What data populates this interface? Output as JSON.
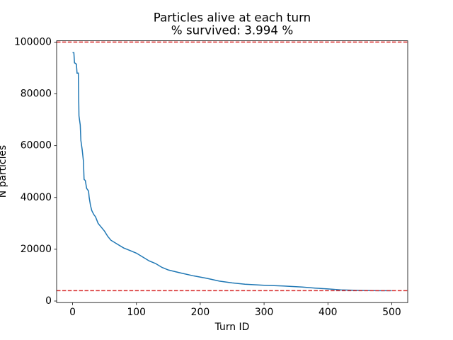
{
  "chart_data": {
    "type": "line",
    "title": "Particles alive at each turn",
    "subtitle": "% survived: 3.994 %",
    "x_label": "Turn ID",
    "y_label": "N particles",
    "x": [
      0,
      2,
      3,
      6,
      7,
      9,
      10,
      12,
      13,
      15,
      17,
      18,
      20,
      22,
      25,
      26,
      28,
      30,
      33,
      36,
      40,
      45,
      50,
      55,
      60,
      70,
      80,
      90,
      100,
      110,
      120,
      130,
      140,
      150,
      170,
      190,
      210,
      230,
      250,
      270,
      300,
      330,
      360,
      380,
      400,
      420,
      450,
      480,
      500
    ],
    "series": [
      {
        "name": "N particles",
        "color": "#1f77b4",
        "values": [
          95900,
          95900,
          92000,
          91500,
          88000,
          88000,
          71500,
          68000,
          62000,
          58500,
          54000,
          47000,
          46500,
          43500,
          42500,
          40000,
          37000,
          35000,
          33500,
          32500,
          30000,
          28500,
          27000,
          25000,
          23500,
          22000,
          20500,
          19500,
          18500,
          17000,
          15500,
          14500,
          13000,
          12000,
          10800,
          9700,
          8800,
          7700,
          7000,
          6500,
          6100,
          5800,
          5400,
          5000,
          4700,
          4300,
          4100,
          4000,
          3994
        ]
      }
    ],
    "hlines": [
      100000,
      3994
    ],
    "hline_color": "#d62728",
    "xlim": [
      -25,
      525
    ],
    "ylim": [
      -600,
      100500
    ],
    "xticks": [
      0,
      100,
      200,
      300,
      400,
      500
    ],
    "yticks": [
      0,
      20000,
      40000,
      60000,
      80000,
      100000
    ]
  }
}
